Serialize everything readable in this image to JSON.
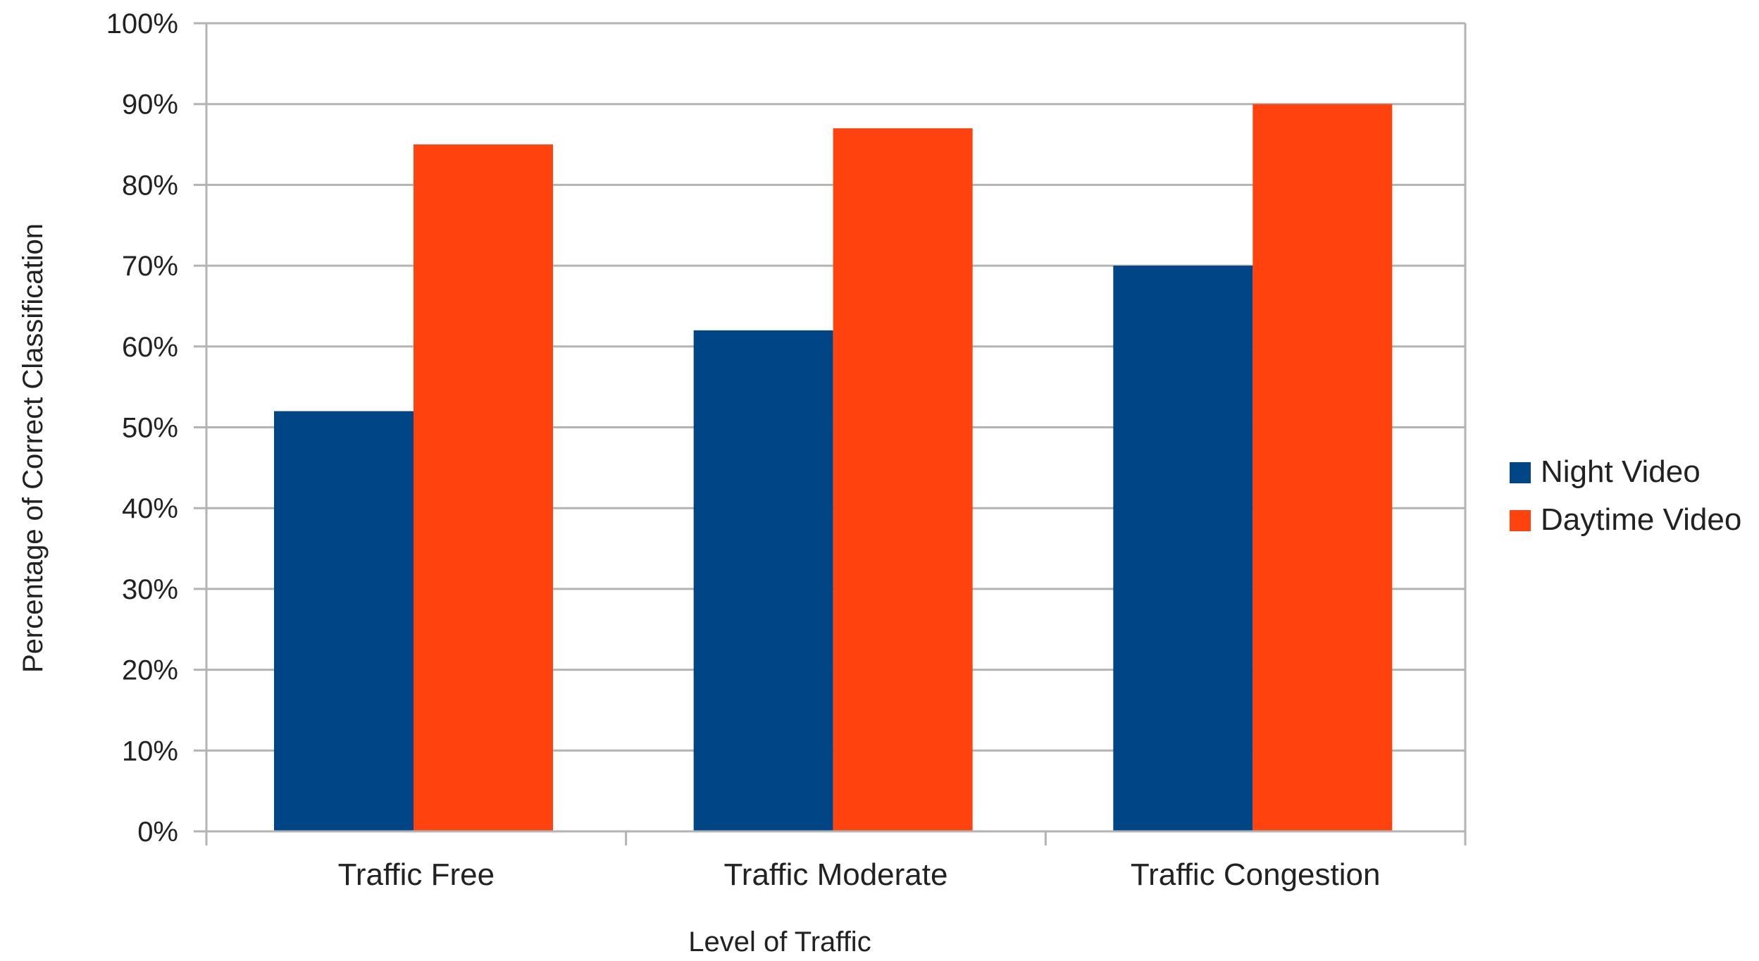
{
  "chart_data": {
    "type": "bar",
    "title": "",
    "xlabel": "Level of Traffic",
    "ylabel": "Percentage of Correct Classification",
    "categories": [
      "Traffic Free",
      "Traffic Moderate",
      "Traffic Congestion"
    ],
    "series": [
      {
        "name": "Night Video",
        "color": "#004586",
        "values": [
          52,
          62,
          70
        ]
      },
      {
        "name": "Daytime Video",
        "color": "#ff420e",
        "values": [
          85,
          87,
          90
        ]
      }
    ],
    "ylim": [
      0,
      100
    ],
    "yticks": [
      0,
      10,
      20,
      30,
      40,
      50,
      60,
      70,
      80,
      90,
      100
    ],
    "ytick_labels": [
      "0%",
      "10%",
      "20%",
      "30%",
      "40%",
      "50%",
      "60%",
      "70%",
      "80%",
      "90%",
      "100%"
    ],
    "grid": true,
    "legend_position": "right"
  }
}
